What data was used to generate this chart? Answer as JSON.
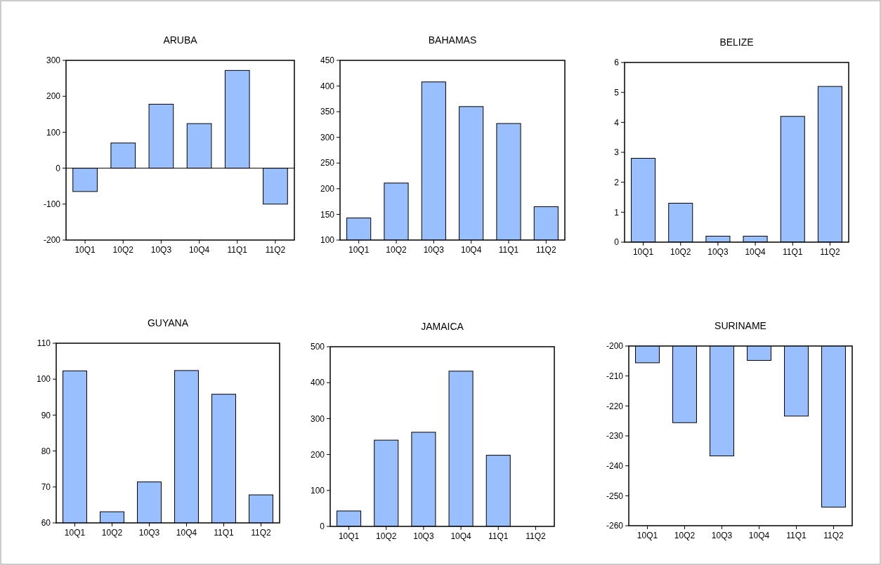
{
  "chart_data": [
    {
      "type": "bar",
      "title": "ARUBA",
      "categories": [
        "10Q1",
        "10Q2",
        "10Q3",
        "10Q4",
        "11Q1",
        "11Q2"
      ],
      "values": [
        -65,
        70,
        178,
        124,
        272,
        -100
      ],
      "color": "#99bfff",
      "ylim": [
        -200,
        300
      ],
      "yticks": [
        -200,
        -100,
        0,
        100,
        200,
        300
      ],
      "ref_lines": [
        {
          "axis": "y",
          "value": 0,
          "color": "#000000"
        }
      ]
    },
    {
      "type": "bar",
      "title": "BAHAMAS",
      "categories": [
        "10Q1",
        "10Q2",
        "10Q3",
        "10Q4",
        "11Q1",
        "11Q2"
      ],
      "values": [
        143,
        211,
        408,
        360,
        327,
        165
      ],
      "color": "#99bfff",
      "ylim": [
        100,
        450
      ],
      "yticks": [
        100,
        150,
        200,
        250,
        300,
        350,
        400,
        450
      ]
    },
    {
      "type": "bar",
      "title": "BELIZE",
      "categories": [
        "10Q1",
        "10Q2",
        "10Q3",
        "10Q4",
        "11Q1",
        "11Q2"
      ],
      "values": [
        2.8,
        1.3,
        0.2,
        0.2,
        4.2,
        5.2
      ],
      "color": "#99bfff",
      "ylim": [
        0,
        6
      ],
      "yticks": [
        0,
        1,
        2,
        3,
        4,
        5,
        6
      ]
    },
    {
      "type": "bar",
      "title": "GUYANA",
      "categories": [
        "10Q1",
        "10Q2",
        "10Q3",
        "10Q4",
        "11Q1",
        "11Q2"
      ],
      "values": [
        102.3,
        63.1,
        71.4,
        102.4,
        95.8,
        67.8
      ],
      "color": "#99bfff",
      "ylim": [
        60,
        110
      ],
      "yticks": [
        60,
        70,
        80,
        90,
        100,
        110
      ]
    },
    {
      "type": "bar",
      "title": "JAMAICA",
      "categories": [
        "10Q1",
        "10Q2",
        "10Q3",
        "10Q4",
        "11Q1",
        "11Q2"
      ],
      "values": [
        43,
        240,
        262,
        432,
        198,
        null
      ],
      "color": "#99bfff",
      "ylim": [
        0,
        500
      ],
      "yticks": [
        0,
        100,
        200,
        300,
        400,
        500
      ]
    },
    {
      "type": "bar",
      "title": "SURINAME",
      "categories": [
        "10Q1",
        "10Q2",
        "10Q3",
        "10Q4",
        "11Q1",
        "11Q2"
      ],
      "values": [
        -205.6,
        -225.6,
        -236.7,
        -204.8,
        -223.4,
        -253.8
      ],
      "color": "#99bfff",
      "ylim": [
        -260,
        -200
      ],
      "yticks": [
        -260,
        -250,
        -240,
        -230,
        -220,
        -210,
        -200
      ]
    }
  ]
}
